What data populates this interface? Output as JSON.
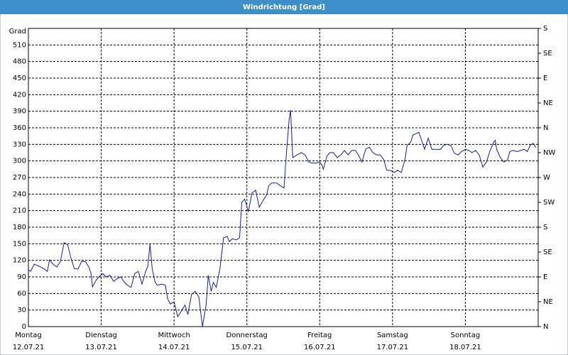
{
  "chart_data": {
    "type": "line",
    "title": "Windrichtung [Grad]",
    "ylabel": "Grad",
    "color": "#1a1aa0",
    "grid": true,
    "xlim": [
      0,
      7
    ],
    "xticks": [
      {
        "value": 0,
        "label": "Montag",
        "sublabel": "12.07.21"
      },
      {
        "value": 1,
        "label": "Dienstag",
        "sublabel": "13.07.21"
      },
      {
        "value": 2,
        "label": "Mittwoch",
        "sublabel": "14.07.21"
      },
      {
        "value": 3,
        "label": "Donnerstag",
        "sublabel": "15.07.21"
      },
      {
        "value": 4,
        "label": "Freitag",
        "sublabel": "16.07.21"
      },
      {
        "value": 5,
        "label": "Samstag",
        "sublabel": "17.07.21"
      },
      {
        "value": 6,
        "label": "Sonntag",
        "sublabel": "18.07.21"
      }
    ],
    "ylim": [
      0,
      540
    ],
    "yticks": [
      0,
      30,
      60,
      90,
      120,
      150,
      180,
      210,
      240,
      270,
      300,
      330,
      360,
      390,
      420,
      450,
      480,
      510
    ],
    "y2lim": [
      0,
      540
    ],
    "y2ticks": [
      {
        "value": 0,
        "label": "N"
      },
      {
        "value": 45,
        "label": "NE"
      },
      {
        "value": 90,
        "label": "E"
      },
      {
        "value": 135,
        "label": "SE"
      },
      {
        "value": 180,
        "label": "S"
      },
      {
        "value": 225,
        "label": "SW"
      },
      {
        "value": 270,
        "label": "W"
      },
      {
        "value": 315,
        "label": "NW"
      },
      {
        "value": 360,
        "label": "N"
      },
      {
        "value": 405,
        "label": "NE"
      },
      {
        "value": 450,
        "label": "E"
      },
      {
        "value": 495,
        "label": "SE"
      },
      {
        "value": 540,
        "label": "S"
      }
    ],
    "x": [
      0,
      0.03,
      0.08,
      0.15,
      0.21,
      0.26,
      0.29,
      0.34,
      0.39,
      0.44,
      0.49,
      0.54,
      0.58,
      0.63,
      0.68,
      0.73,
      0.78,
      0.83,
      0.86,
      0.88,
      0.93,
      0.97,
      1.02,
      1.07,
      1.12,
      1.17,
      1.22,
      1.27,
      1.32,
      1.36,
      1.41,
      1.46,
      1.51,
      1.56,
      1.61,
      1.64,
      1.67,
      1.7,
      1.74,
      1.77,
      1.83,
      1.88,
      1.91,
      1.95,
      2.0,
      2.05,
      2.1,
      2.15,
      2.19,
      2.24,
      2.29,
      2.34,
      2.39,
      2.44,
      2.47,
      2.51,
      2.54,
      2.58,
      2.63,
      2.68,
      2.73,
      2.76,
      2.8,
      2.86,
      2.9,
      2.93,
      2.97,
      3.02,
      3.07,
      3.12,
      3.17,
      3.22,
      3.27,
      3.3,
      3.34,
      3.41,
      3.46,
      3.51,
      3.54,
      3.58,
      3.6,
      3.63,
      3.69,
      3.75,
      3.8,
      3.85,
      3.9,
      3.95,
      4.0,
      4.03,
      4.05,
      4.1,
      4.14,
      4.19,
      4.24,
      4.29,
      4.34,
      4.39,
      4.44,
      4.49,
      4.53,
      4.58,
      4.63,
      4.68,
      4.73,
      4.78,
      4.83,
      4.88,
      4.92,
      4.97,
      5.02,
      5.07,
      5.12,
      5.17,
      5.2,
      5.25,
      5.28,
      5.33,
      5.36,
      5.39,
      5.44,
      5.49,
      5.54,
      5.61,
      5.66,
      5.7,
      5.75,
      5.8,
      5.85,
      5.9,
      5.95,
      6.0,
      6.05,
      6.09,
      6.14,
      6.19,
      6.24,
      6.29,
      6.34,
      6.39,
      6.41,
      6.43,
      6.48,
      6.53,
      6.58,
      6.61,
      6.65,
      6.71,
      6.76,
      6.81,
      6.85,
      6.89,
      6.93,
      6.97
    ],
    "values": [
      103,
      100,
      113,
      109,
      105,
      100,
      121,
      113,
      108,
      118,
      152,
      148,
      126,
      105,
      104,
      118,
      118,
      108,
      96,
      72,
      84,
      90,
      96,
      90,
      93,
      82,
      87,
      90,
      80,
      75,
      71,
      96,
      100,
      77,
      100,
      109,
      149,
      105,
      80,
      75,
      77,
      75,
      51,
      41,
      45,
      18,
      28,
      39,
      22,
      58,
      64,
      54,
      0,
      39,
      93,
      64,
      80,
      71,
      105,
      161,
      163,
      154,
      159,
      157,
      161,
      225,
      231,
      208,
      242,
      247,
      216,
      228,
      238,
      255,
      260,
      260,
      255,
      251,
      309,
      375,
      392,
      306,
      311,
      315,
      311,
      298,
      296,
      296,
      298,
      293,
      285,
      309,
      315,
      315,
      306,
      311,
      319,
      311,
      319,
      319,
      311,
      298,
      321,
      325,
      315,
      311,
      311,
      302,
      283,
      283,
      279,
      283,
      279,
      302,
      328,
      334,
      347,
      350,
      352,
      341,
      321,
      341,
      321,
      321,
      321,
      328,
      330,
      328,
      314,
      311,
      317,
      321,
      319,
      315,
      319,
      311,
      289,
      298,
      319,
      334,
      337,
      321,
      306,
      298,
      302,
      317,
      319,
      317,
      319,
      321,
      317,
      328,
      332,
      324
    ]
  }
}
